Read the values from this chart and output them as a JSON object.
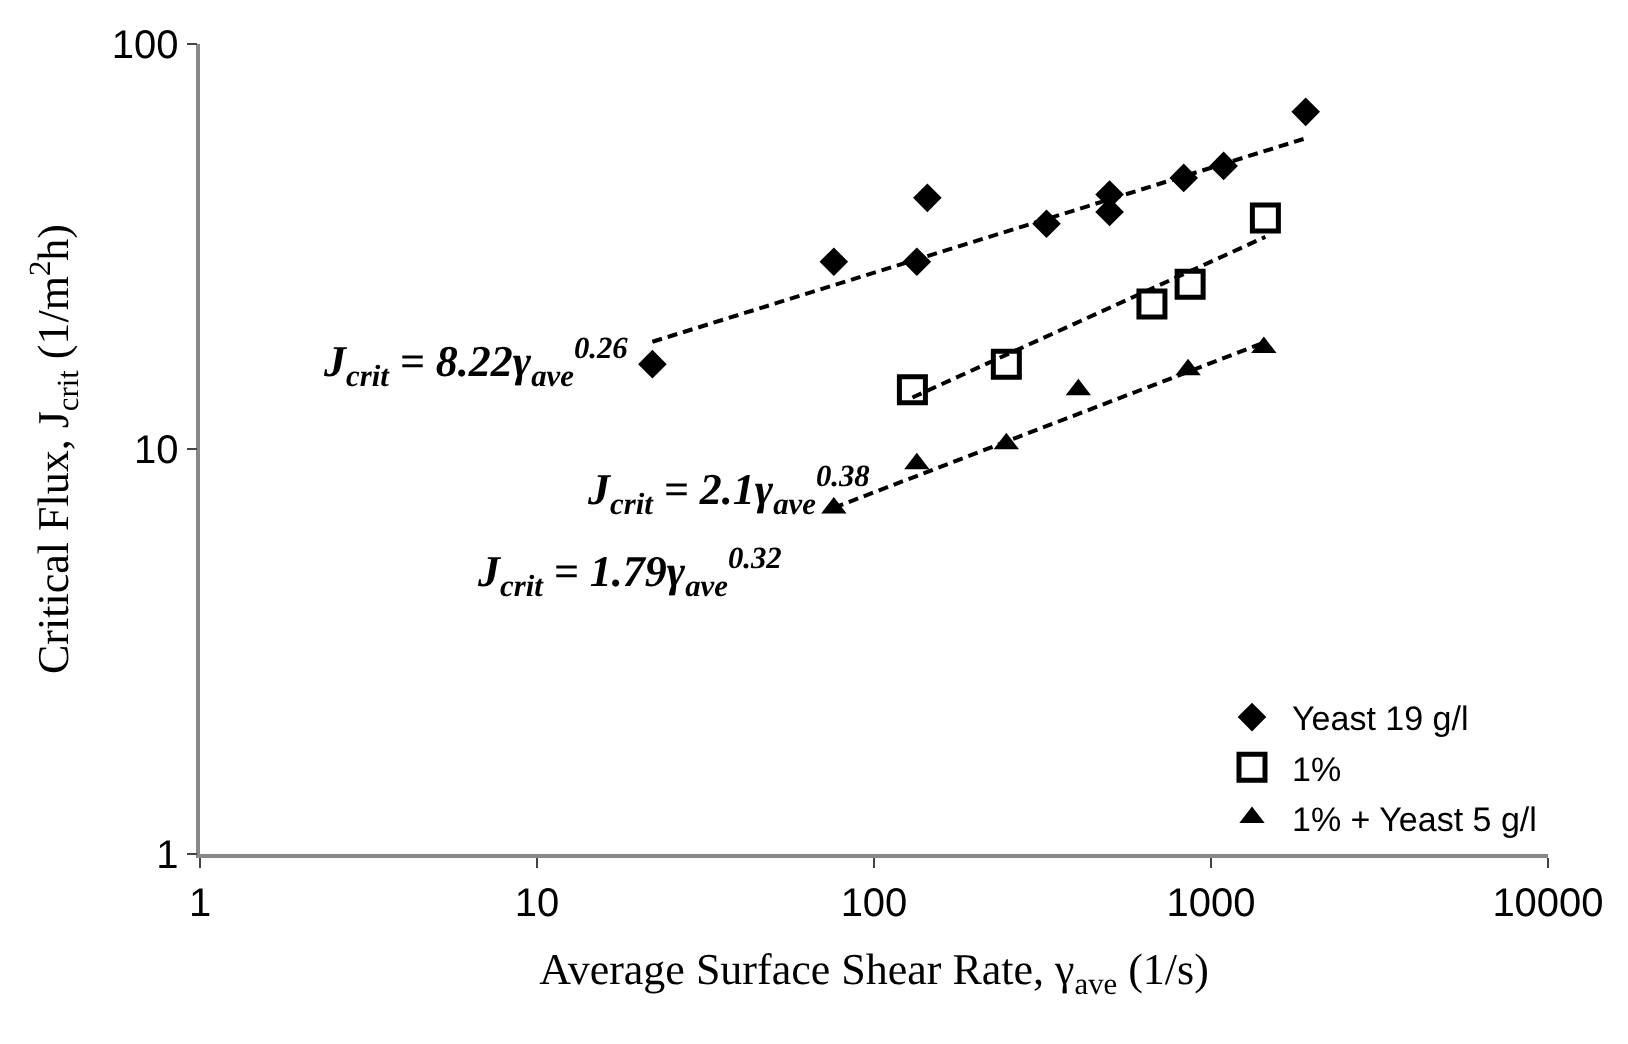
{
  "chart_data": {
    "type": "scatter",
    "xlabel": "Average Surface Shear Rate, γ$_{ave}$ (1/s)",
    "ylabel": "Critical Flux, J$_{crit}$ (1/m$^{2}$h)",
    "log": "xy",
    "xlim": [
      1,
      10000
    ],
    "ylim": [
      1,
      100
    ],
    "xticks": [
      1,
      10,
      100,
      1000,
      10000
    ],
    "yticks": [
      1,
      10,
      100
    ],
    "legend": "bottom right",
    "annotations": [
      "J$_{crit}$ = 8.22γ$_{ave}$$^{0.26}$",
      "J$_{crit}$ = 2.1γ$_{ave}$$^{0.38}$",
      "J$_{crit}$ = 1.79γ$_{ave}$$^{0.32}$"
    ],
    "series": [
      {
        "name": "Yeast 19 g/l",
        "marker": "diamond",
        "color": "#000000",
        "x": [
          22,
          76,
          134,
          144,
          325,
          500,
          500,
          830,
          1090,
          1910
        ],
        "values": [
          16.2,
          29,
          29,
          41.7,
          36,
          42.5,
          38.5,
          46.7,
          50,
          68
        ]
      },
      {
        "name": "1%",
        "marker": "square",
        "color": "#000000",
        "x": [
          130,
          247,
          668,
          867,
          1450
        ],
        "values": [
          14,
          16.2,
          22.8,
          25.5,
          37.2
        ]
      },
      {
        "name": "1% + Yeast 5 g/l",
        "marker": "triangle",
        "color": "#000000",
        "x": [
          76,
          134,
          247,
          404,
          855,
          1435
        ],
        "values": [
          7.15,
          9.2,
          10.3,
          14,
          15.7,
          17.8
        ]
      },
      {
        "type": "line",
        "marker": "none",
        "line_style": "dashed",
        "color": "#000000",
        "x": [
          22,
          1910
        ],
        "values": [
          18.4,
          58.5
        ]
      },
      {
        "type": "line",
        "marker": "none",
        "line_style": "dashed",
        "color": "#000000",
        "x": [
          130,
          1450
        ],
        "values": [
          13.4,
          33.4
        ]
      },
      {
        "type": "line",
        "marker": "none",
        "line_style": "dashed",
        "color": "#000000",
        "x": [
          76,
          1435
        ],
        "values": [
          7.16,
          18.3
        ]
      }
    ]
  }
}
